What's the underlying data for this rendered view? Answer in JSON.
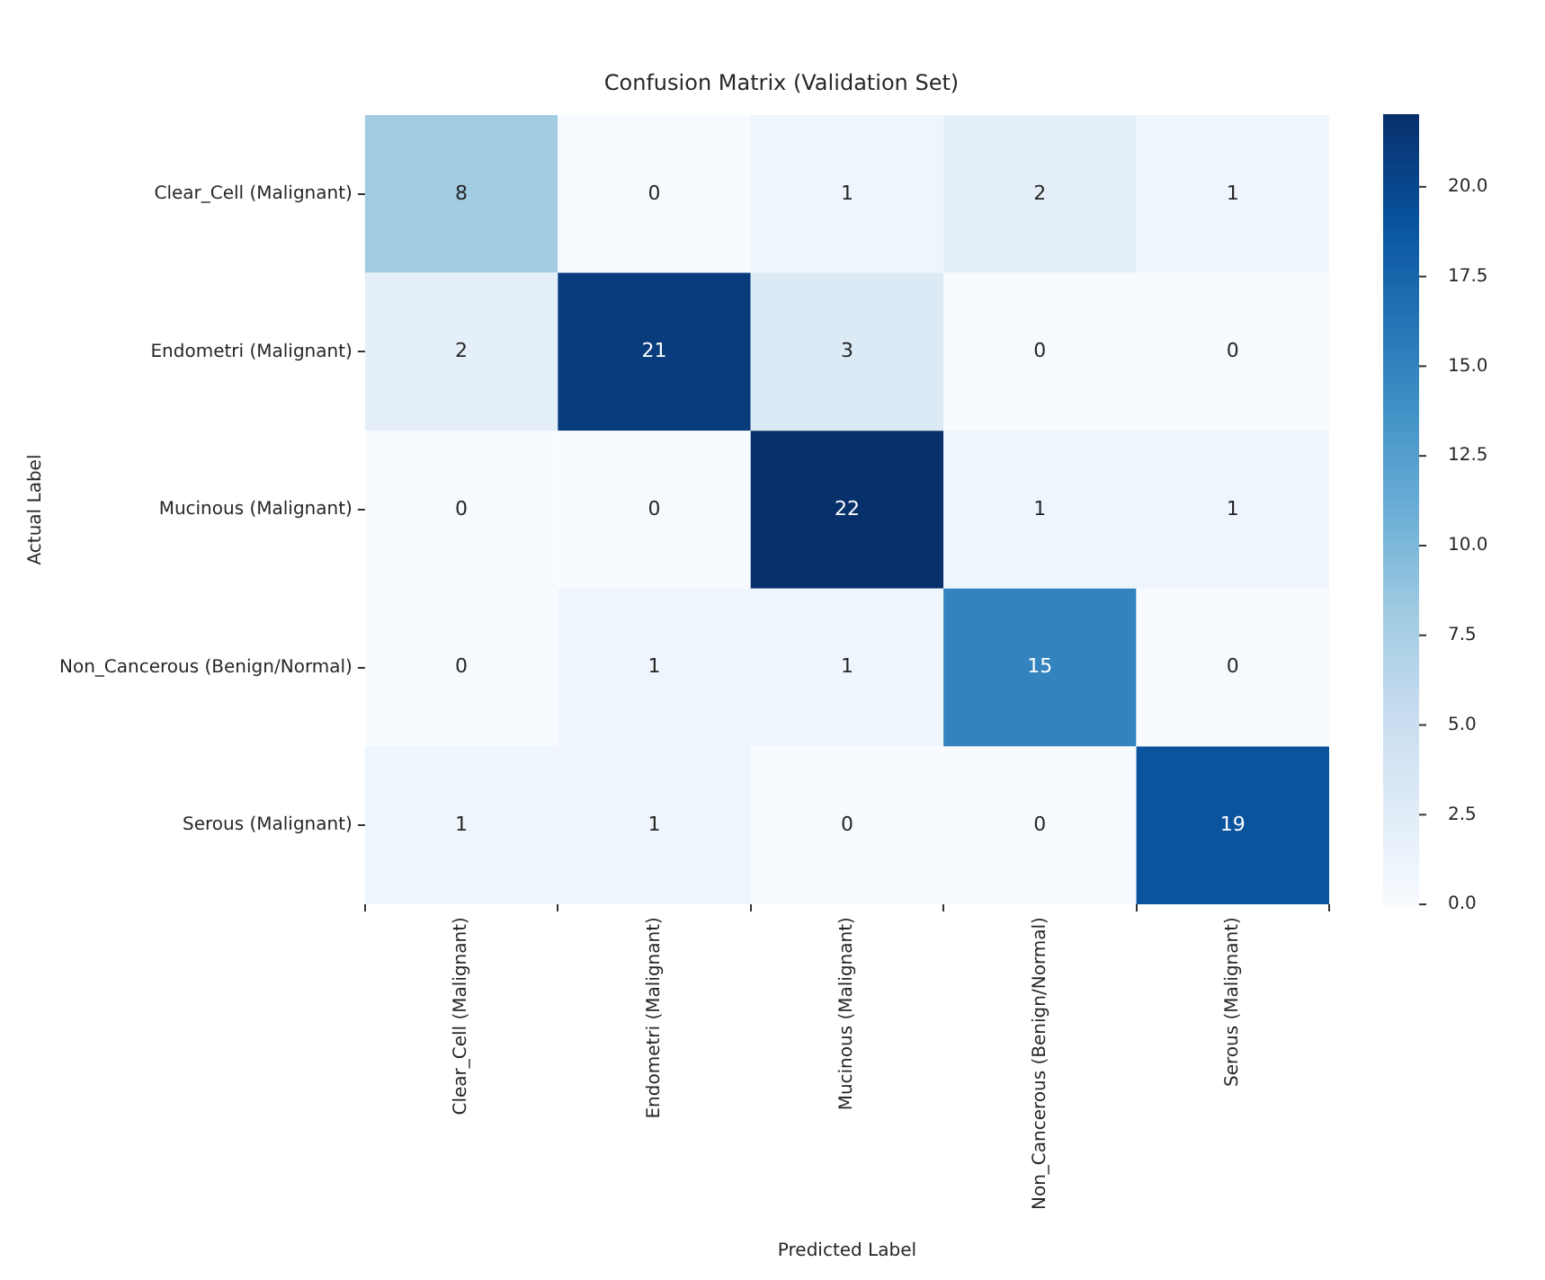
{
  "chart_data": {
    "type": "heatmap",
    "title": "Confusion Matrix (Validation Set)",
    "xlabel": "Predicted Label",
    "ylabel": "Actual Label",
    "categories": [
      "Clear_Cell (Malignant)",
      "Endometri (Malignant)",
      "Mucinous (Malignant)",
      "Non_Cancerous (Benign/Normal)",
      "Serous (Malignant)"
    ],
    "y_categories": [
      "Clear_Cell (Malignant)",
      "Endometri (Malignant)",
      "Mucinous (Malignant)",
      "Non_Cancerous (Benign/Normal)",
      "Serous (Malignant)"
    ],
    "cells": [
      [
        8,
        0,
        1,
        2,
        1
      ],
      [
        2,
        21,
        3,
        0,
        0
      ],
      [
        0,
        0,
        22,
        1,
        1
      ],
      [
        0,
        1,
        1,
        15,
        0
      ],
      [
        1,
        1,
        0,
        0,
        19
      ]
    ],
    "clim": [
      0,
      22
    ],
    "cticks": [
      {
        "value": 0,
        "label": "0.0"
      },
      {
        "value": 2.5,
        "label": "2.5"
      },
      {
        "value": 5,
        "label": "5.0"
      },
      {
        "value": 7.5,
        "label": "7.5"
      },
      {
        "value": 10,
        "label": "10.0"
      },
      {
        "value": 12.5,
        "label": "12.5"
      },
      {
        "value": 15,
        "label": "15.0"
      },
      {
        "value": 17.5,
        "label": "17.5"
      },
      {
        "value": 20,
        "label": "20.0"
      }
    ],
    "data_labels": true
  }
}
